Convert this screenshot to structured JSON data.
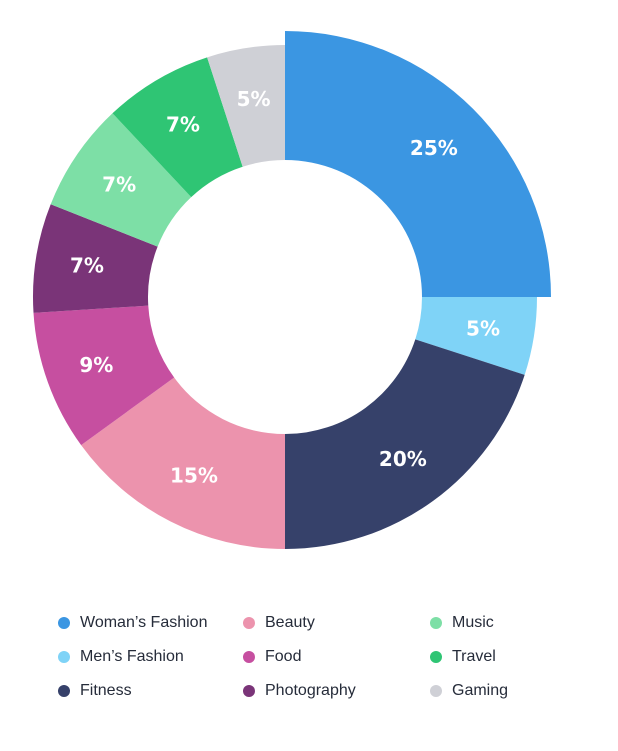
{
  "chart_data": {
    "type": "pie",
    "variant": "donut",
    "unit": "%",
    "slices": [
      {
        "name": "Woman’s Fashion",
        "value": 25,
        "label": "25%",
        "color": "#3b96e2",
        "exploded": true
      },
      {
        "name": "Men’s Fashion",
        "value": 5,
        "label": "5%",
        "color": "#7fd3f7"
      },
      {
        "name": "Fitness",
        "value": 20,
        "label": "20%",
        "color": "#36416a"
      },
      {
        "name": "Beauty",
        "value": 15,
        "label": "15%",
        "color": "#ec93ad"
      },
      {
        "name": "Food",
        "value": 9,
        "label": "9%",
        "color": "#c64fa0"
      },
      {
        "name": "Photography",
        "value": 7,
        "label": "7%",
        "color": "#7a3478"
      },
      {
        "name": "Music",
        "value": 7,
        "label": "7%",
        "color": "#7ddfa6"
      },
      {
        "name": "Travel",
        "value": 7,
        "label": "7%",
        "color": "#2fc574"
      },
      {
        "name": "Gaming",
        "value": 5,
        "label": "5%",
        "color": "#cfd0d6"
      }
    ],
    "legend": {
      "placement": "bottom",
      "columns": [
        [
          "Woman’s Fashion",
          "Men’s Fashion",
          "Fitness"
        ],
        [
          "Beauty",
          "Food",
          "Photography"
        ],
        [
          "Music",
          "Travel",
          "Gaming"
        ]
      ]
    },
    "title": "",
    "xlabel": "",
    "ylabel": ""
  }
}
